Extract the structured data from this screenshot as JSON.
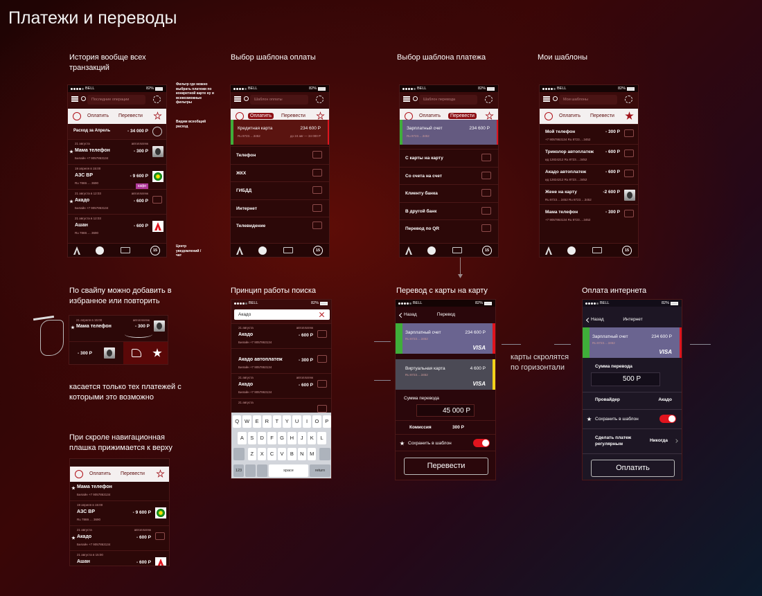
{
  "title": "Платежи и переводы",
  "notes": {
    "filter": "Фильтр где можно выбрать платежи по конкретной карте ну и всевозможные фильтры",
    "expense": "Видим всеобщий расход",
    "notifications": "Центр уведомлений / чат",
    "swipe_scope": "касается только тех платежей с которыми это возможно",
    "cards_scroll": "карты скролятся по горизонтали"
  },
  "status": {
    "carrier": "BELL",
    "battery": "82%"
  },
  "tabs": [
    "Оплатить",
    "Перевести"
  ],
  "badge": "15",
  "history": {
    "caption": "История вообще всех транзакций",
    "search": "Последние операции",
    "summary": {
      "label": "Расход за Апрель",
      "amount": "- 34 000 Р"
    },
    "items": [
      {
        "date": "21 августа",
        "tag": "автоплатеж",
        "name": "Мама телефон",
        "amount": "- 300 Р",
        "sub": "Билайн +7 9057863134",
        "favorite": true
      },
      {
        "date": "19 апреля в 15:00",
        "name": "АЗС BP",
        "amount": "- 9 600 Р",
        "sub": "Ru 7869…. 3690",
        "badge": "кафе"
      },
      {
        "date": "21 августа в 12:03",
        "tag": "автоплатеж",
        "name": "Акадо",
        "amount": "- 600 Р",
        "sub": "Билайн +7 9057863134",
        "favorite": true
      },
      {
        "date": "21 августа в 12:03",
        "name": "Ашан",
        "amount": "- 600 Р",
        "sub": "Ru 7869…. 3690"
      }
    ]
  },
  "pay_templates": {
    "caption": "Выбор шаблона оплаты",
    "search": "Шаблон оплаты",
    "card": {
      "name": "Кредитная карта",
      "amount": "234 600 Р",
      "number": "Ru 8723….3452",
      "due": "до 24 авг — 34 000 Р"
    },
    "items": [
      "Телефон",
      "ЖКХ",
      "ГИБДД",
      "Интернет",
      "Телевидение"
    ]
  },
  "transfer_templates": {
    "caption": "Выбор шаблона платежа",
    "search": "Шаблон перевода",
    "card": {
      "name": "Зарплатный счет",
      "amount": "234 600 Р",
      "number": "Ru 8723….3452"
    },
    "items": [
      "С карты на карту",
      "Со счета на счет",
      "Клиенту банка",
      "В другой банк",
      "Перевод по QR"
    ]
  },
  "my_templates": {
    "caption": "Мои шаблоны",
    "search": "Мои шаблоны",
    "items": [
      {
        "name": "Мой телефон",
        "amount": "- 300 Р",
        "sub": "+7 9057863134   Ru 8723….3452"
      },
      {
        "name": "Триколор автоплатеж",
        "amount": "- 600 Р",
        "sub": "ид 12824212   Ru 8723….3452"
      },
      {
        "name": "Акадо автоплатеж",
        "amount": "- 600 Р",
        "sub": "ид 12824212   Ru 8723….3452"
      },
      {
        "name": "Жене на карту",
        "amount": "-2 600 Р",
        "sub": "Ru 8723….3452   Ru 8723….3452"
      },
      {
        "name": "Мама телефон",
        "amount": "- 300 Р",
        "sub": "+7 9057863134   Ru 8723….3452"
      }
    ]
  },
  "swipe": {
    "caption": "По свайпу можно добавить в избранное или повторить",
    "date": "21 апреля в 15:00",
    "tag": "автоплатеж",
    "name": "Мама телефон",
    "amount": "- 300 Р",
    "swiped_amount": "- 300 Р"
  },
  "sticky": {
    "caption": "При скроле навигационная плашка прижимается к верху",
    "items": [
      {
        "name": "Мама телефон",
        "sub": "Билайн +7 9057863134",
        "favorite": true
      },
      {
        "date": "19 апреля в 15:00",
        "name": "АЗС BP",
        "amount": "- 9 600 Р",
        "sub": "Ru 7869…. 3690"
      },
      {
        "date": "21 августа",
        "tag": "автоплатеж",
        "name": "Акадо",
        "amount": "- 600 Р",
        "sub": "Билайн +7 9057863134",
        "favorite": true
      },
      {
        "date": "21 августа в 15:00",
        "name": "Ашан",
        "amount": "- 600 Р"
      }
    ]
  },
  "search": {
    "caption": "Принцип работы поиска",
    "query": "Акадо",
    "items": [
      {
        "date": "21 августа",
        "tag": "автоплатеж",
        "name": "Акадо",
        "amount": "- 600 Р",
        "sub": "Билайн +7 9057863134"
      },
      {
        "name": "Акадо автоплатеж",
        "amount": "- 300 Р",
        "sub": "Билайн +7 9057863134"
      },
      {
        "date": "21 августа",
        "tag": "автоплатеж",
        "name": "Акадо",
        "amount": "- 600 Р",
        "sub": "Билайн +7 9057863134"
      },
      {
        "date": "21 августа"
      }
    ],
    "keyboard": {
      "rows": [
        [
          "Q",
          "W",
          "E",
          "R",
          "T",
          "Y",
          "U",
          "I",
          "O",
          "P"
        ],
        [
          "A",
          "S",
          "D",
          "F",
          "G",
          "H",
          "J",
          "K",
          "L"
        ],
        [
          "Z",
          "X",
          "C",
          "V",
          "B",
          "N",
          "M"
        ]
      ],
      "numbers": "123",
      "space": "space",
      "return": "return"
    }
  },
  "card_transfer": {
    "caption": "Перевод с карты на карту",
    "back": "Назад",
    "title": "Перевод",
    "cards": [
      {
        "name": "Зарплатный счет",
        "amount": "234 600 Р",
        "number": "Ru 8723….3452",
        "brand": "VISA"
      },
      {
        "name": "Виртуальная карта",
        "amount": "4 600 Р",
        "number": "Ru 8723….3452",
        "brand": "VISA"
      }
    ],
    "amount_label": "Сумма перевода",
    "amount": "45 000 Р",
    "fee_label": "Комиссия",
    "fee": "300 Р",
    "save": "Сохранить в шаблон",
    "button": "Перевести"
  },
  "internet": {
    "caption": "Оплата интернета",
    "back": "Назад",
    "title": "Интернет",
    "card": {
      "name": "Зарплатный счет",
      "amount": "234 600 Р",
      "number": "Ru 8723….3452",
      "brand": "VISA"
    },
    "amount_label": "Сумма перевода",
    "amount": "500 Р",
    "provider_label": "Провайдер",
    "provider": "Акадо",
    "save": "Сохранить в шаблон",
    "regular_label": "Сделать платеж регулярным",
    "regular": "Никогда",
    "button": "Оплатить"
  }
}
